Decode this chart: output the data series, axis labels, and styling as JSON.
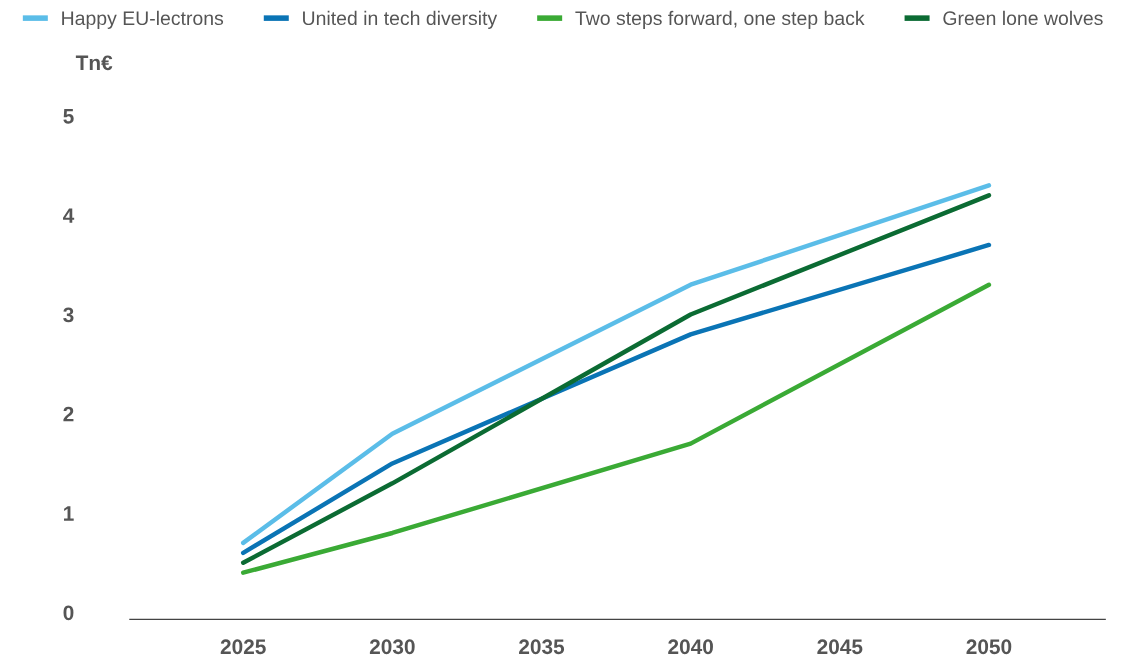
{
  "chart_data": {
    "type": "line",
    "ylabel": "Tn€",
    "x": [
      2025,
      2030,
      2040,
      2050
    ],
    "series": [
      {
        "name": "Happy EU-lectrons",
        "color": "#5bbde8",
        "values": [
          0.7,
          1.8,
          3.3,
          4.3
        ]
      },
      {
        "name": "United in tech diversity",
        "color": "#0a74b5",
        "values": [
          0.6,
          1.5,
          2.8,
          3.7
        ]
      },
      {
        "name": "Two steps forward, one step back",
        "color": "#3aaa35",
        "values": [
          0.4,
          0.8,
          1.7,
          3.3
        ]
      },
      {
        "name": "Green lone wolves",
        "color": "#0b6b33",
        "values": [
          0.5,
          1.3,
          3.0,
          4.2
        ]
      }
    ],
    "xlim": [
      2021.2,
      2053.9
    ],
    "xticks": [
      2025,
      2030,
      2035,
      2040,
      2045,
      2050
    ],
    "ylim": [
      -0.07,
      5
    ],
    "yticks": [
      0,
      1,
      2,
      3,
      4,
      5
    ],
    "grid": false,
    "legend": "top",
    "marker": "none",
    "line_style": "solid"
  }
}
